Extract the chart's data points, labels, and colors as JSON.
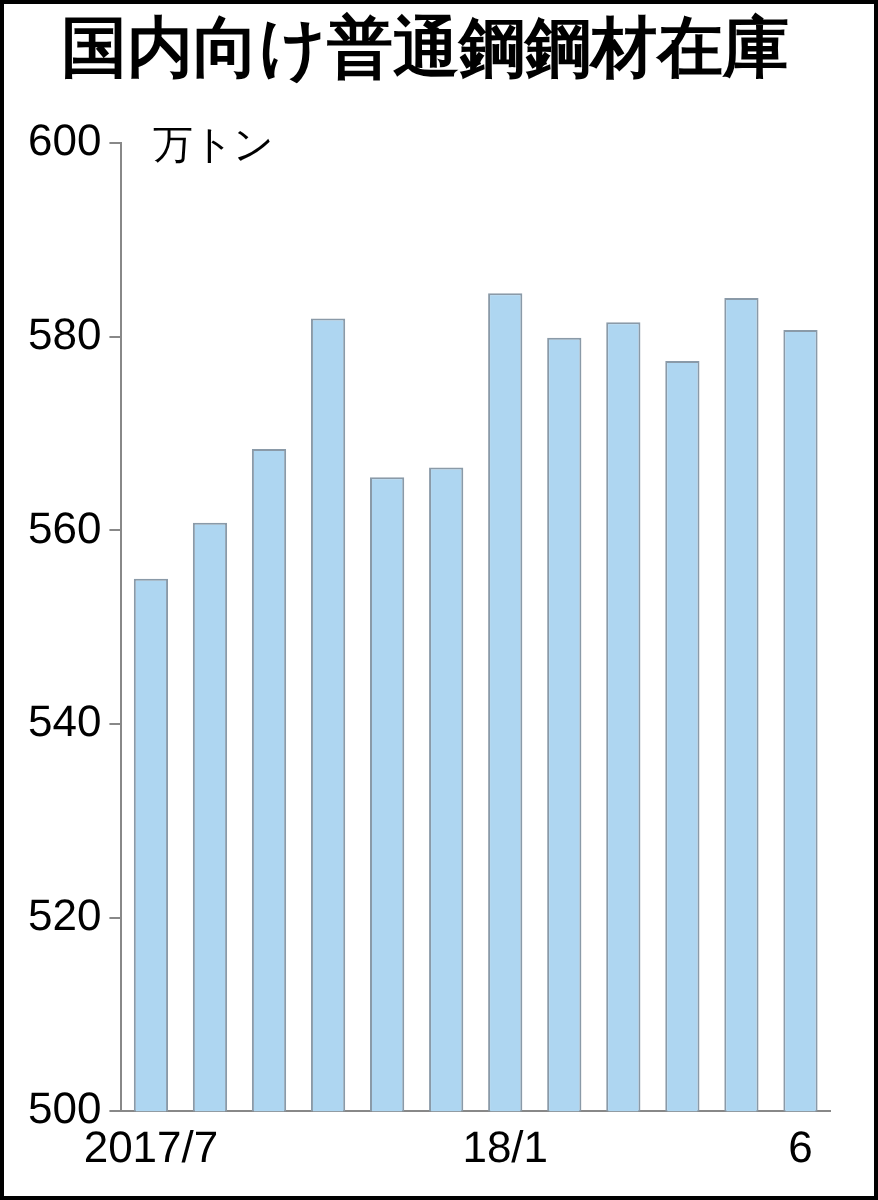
{
  "chart_data": {
    "type": "bar",
    "title": "国内向け普通鋼鋼材在庫",
    "ylabel": "万トン",
    "categories": [
      "2017/7",
      null,
      null,
      null,
      null,
      null,
      "18/1",
      null,
      null,
      null,
      null,
      "6"
    ],
    "values": [
      555,
      560.8,
      568.4,
      581.9,
      565.5,
      566.5,
      584.5,
      579.9,
      581.5,
      577.5,
      584,
      580.7
    ],
    "color": "#aed6f1",
    "ylim": [
      500,
      600
    ],
    "yticks": [
      500,
      520,
      540,
      560,
      580,
      600
    ],
    "grid": false,
    "legend": false
  }
}
